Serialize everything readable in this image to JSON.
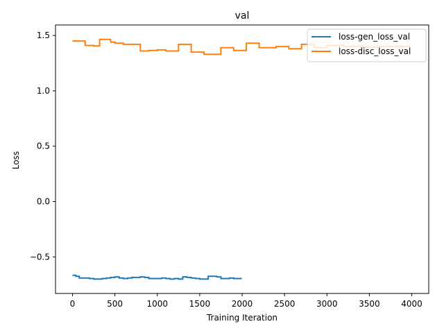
{
  "chart_data": {
    "type": "line",
    "title": "val",
    "xlabel": "Training Iteration",
    "ylabel": "Loss",
    "xlim": [
      -200,
      4200
    ],
    "ylim": [
      -0.83,
      1.595
    ],
    "xticks": [
      0,
      500,
      1000,
      1500,
      2000,
      2500,
      3000,
      3500,
      4000
    ],
    "xtick_labels": [
      "0",
      "500",
      "1000",
      "1500",
      "2000",
      "2500",
      "3000",
      "3500",
      "4000"
    ],
    "yticks": [
      -0.5,
      0.0,
      0.5,
      1.0,
      1.5
    ],
    "ytick_labels": [
      "−0.5",
      "0.0",
      "0.5",
      "1.0",
      "1.5"
    ],
    "grid": false,
    "legend_position": "top-right",
    "series": [
      {
        "name": "loss-gen_loss_val",
        "color": "#1f77b4",
        "step": true,
        "x": [
          0,
          40,
          80,
          120,
          150,
          200,
          250,
          300,
          350,
          400,
          450,
          500,
          550,
          600,
          650,
          700,
          750,
          800,
          850,
          900,
          950,
          1000,
          1050,
          1100,
          1150,
          1200,
          1250,
          1300,
          1350,
          1400,
          1450,
          1500,
          1550,
          1600,
          1650,
          1700,
          1750,
          1800,
          1850,
          1900,
          1950,
          1990
        ],
        "y": [
          -0.665,
          -0.675,
          -0.69,
          -0.69,
          -0.69,
          -0.695,
          -0.7,
          -0.7,
          -0.695,
          -0.69,
          -0.685,
          -0.68,
          -0.69,
          -0.695,
          -0.69,
          -0.685,
          -0.685,
          -0.68,
          -0.685,
          -0.695,
          -0.695,
          -0.695,
          -0.69,
          -0.695,
          -0.7,
          -0.695,
          -0.7,
          -0.68,
          -0.685,
          -0.69,
          -0.695,
          -0.7,
          -0.7,
          -0.675,
          -0.675,
          -0.68,
          -0.695,
          -0.695,
          -0.69,
          -0.695,
          -0.695,
          -0.7
        ]
      },
      {
        "name": "loss-disc_loss_val",
        "color": "#ff7f0e",
        "step": true,
        "x": [
          0,
          60,
          150,
          250,
          320,
          450,
          500,
          600,
          800,
          900,
          1000,
          1100,
          1250,
          1400,
          1550,
          1750,
          1900,
          2050,
          2200,
          2400,
          2550,
          2700,
          2850,
          3000,
          3200,
          3400,
          3600,
          3800,
          3990
        ],
        "y": [
          1.45,
          1.45,
          1.41,
          1.405,
          1.465,
          1.44,
          1.43,
          1.42,
          1.36,
          1.365,
          1.37,
          1.36,
          1.42,
          1.35,
          1.33,
          1.39,
          1.365,
          1.43,
          1.39,
          1.4,
          1.38,
          1.42,
          1.39,
          1.41,
          1.4,
          1.395,
          1.4,
          1.4,
          1.4
        ]
      }
    ]
  }
}
